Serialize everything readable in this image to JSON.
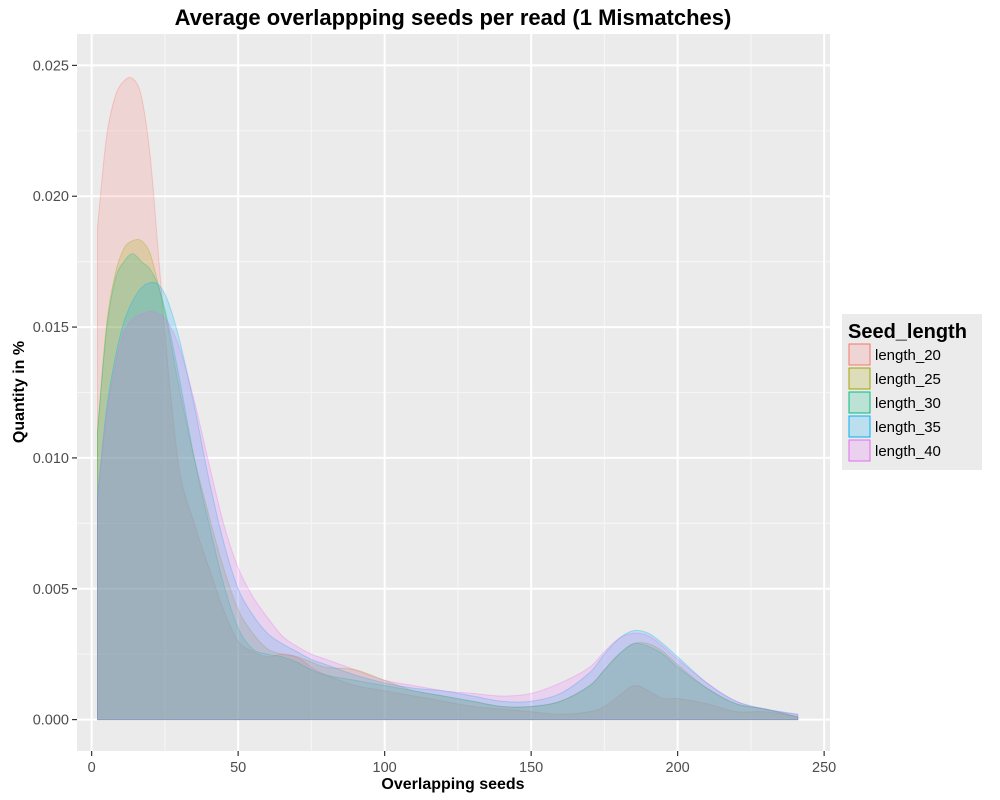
{
  "chart_data": {
    "type": "area",
    "title": "Average overlappping seeds per read (1 Mismatches)",
    "xlabel": "Overlapping seeds",
    "ylabel": "Quantity in %",
    "xlim": [
      -5,
      252
    ],
    "ylim": [
      -0.0012,
      0.0262
    ],
    "x_ticks": [
      0,
      50,
      100,
      150,
      200,
      250
    ],
    "y_ticks": [
      0.0,
      0.005,
      0.01,
      0.015,
      0.02,
      0.025
    ],
    "x_tick_labels": [
      "0",
      "50",
      "100",
      "150",
      "200",
      "250"
    ],
    "y_tick_labels": [
      "0.000",
      "0.005",
      "0.010",
      "0.015",
      "0.020",
      "0.025"
    ],
    "grid": true,
    "legend_position": "right",
    "legend_title": "Seed_length",
    "x": [
      2,
      5,
      8,
      11,
      14,
      17,
      20,
      23,
      26,
      30,
      35,
      40,
      45,
      50,
      55,
      60,
      65,
      70,
      75,
      80,
      90,
      100,
      110,
      120,
      130,
      140,
      150,
      160,
      170,
      175,
      180,
      185,
      190,
      195,
      200,
      210,
      220,
      230,
      241
    ],
    "series": [
      {
        "name": "length_20",
        "color": "#F8766D",
        "values": [
          0.0188,
          0.0222,
          0.0238,
          0.0244,
          0.0245,
          0.0238,
          0.0215,
          0.0175,
          0.0135,
          0.0095,
          0.0075,
          0.0058,
          0.0042,
          0.003,
          0.0026,
          0.0024,
          0.0025,
          0.0024,
          0.002,
          0.0017,
          0.0013,
          0.0011,
          0.0009,
          0.0007,
          0.0005,
          0.0004,
          0.0003,
          0.0002,
          0.0003,
          0.0005,
          0.0009,
          0.0013,
          0.0011,
          0.0008,
          0.0008,
          0.0006,
          0.0003,
          0.0003,
          0.0001
        ]
      },
      {
        "name": "length_25",
        "color": "#A3A500",
        "values": [
          0.011,
          0.015,
          0.017,
          0.018,
          0.0183,
          0.0183,
          0.0178,
          0.0165,
          0.015,
          0.0126,
          0.01,
          0.0078,
          0.0058,
          0.0042,
          0.0033,
          0.0027,
          0.0025,
          0.0024,
          0.0022,
          0.002,
          0.0019,
          0.0015,
          0.0011,
          0.0009,
          0.0007,
          0.0005,
          0.0005,
          0.0007,
          0.0013,
          0.0019,
          0.0025,
          0.0029,
          0.0029,
          0.0026,
          0.0021,
          0.0012,
          0.0006,
          0.0004,
          0.0001
        ]
      },
      {
        "name": "length_30",
        "color": "#00BF7D",
        "values": [
          0.011,
          0.0148,
          0.0168,
          0.0175,
          0.0178,
          0.0175,
          0.0172,
          0.0165,
          0.0152,
          0.013,
          0.01,
          0.0075,
          0.0052,
          0.0035,
          0.0027,
          0.0025,
          0.0024,
          0.0022,
          0.0019,
          0.0017,
          0.0015,
          0.0013,
          0.0011,
          0.0009,
          0.0007,
          0.0005,
          0.0005,
          0.0007,
          0.0013,
          0.0019,
          0.0025,
          0.0029,
          0.0028,
          0.0025,
          0.002,
          0.0012,
          0.0006,
          0.0004,
          0.0001
        ]
      },
      {
        "name": "length_35",
        "color": "#00B0F6",
        "values": [
          0.0085,
          0.0118,
          0.0138,
          0.0152,
          0.016,
          0.0165,
          0.0167,
          0.0166,
          0.016,
          0.0145,
          0.012,
          0.0092,
          0.0068,
          0.005,
          0.004,
          0.0033,
          0.0029,
          0.0026,
          0.0023,
          0.0021,
          0.0017,
          0.0014,
          0.0012,
          0.0011,
          0.0009,
          0.0007,
          0.0007,
          0.001,
          0.0018,
          0.0025,
          0.0031,
          0.0034,
          0.0033,
          0.0029,
          0.0024,
          0.0014,
          0.0007,
          0.0004,
          0.0002
        ]
      },
      {
        "name": "length_40",
        "color": "#E76BF3",
        "values": [
          0.0085,
          0.0115,
          0.0135,
          0.0148,
          0.0153,
          0.0155,
          0.0156,
          0.0155,
          0.0152,
          0.0142,
          0.0122,
          0.0098,
          0.0075,
          0.0058,
          0.0047,
          0.0039,
          0.0032,
          0.0028,
          0.0025,
          0.0023,
          0.0019,
          0.0015,
          0.0013,
          0.0011,
          0.001,
          0.0009,
          0.001,
          0.0014,
          0.002,
          0.0026,
          0.0031,
          0.0033,
          0.0032,
          0.0028,
          0.0023,
          0.0014,
          0.0007,
          0.0004,
          0.0002
        ]
      }
    ]
  }
}
